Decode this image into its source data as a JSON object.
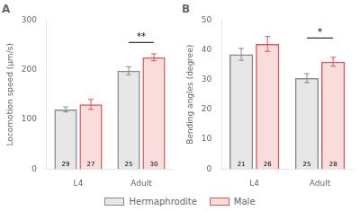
{
  "chart_data": [
    {
      "type": "bar",
      "title": "A",
      "ylabel": "Locomotion speed (μm/s)",
      "categories": [
        "L4",
        "Adult"
      ],
      "series": [
        {
          "name": "Hermaphrodite",
          "color": "#888888",
          "values": [
            120,
            198
          ],
          "errors": [
            5,
            8
          ],
          "n_labels": [
            "29",
            "25"
          ]
        },
        {
          "name": "Male",
          "color": "#e05555",
          "values": [
            130,
            225
          ],
          "errors": [
            10,
            7
          ],
          "n_labels": [
            "27",
            "30"
          ]
        }
      ],
      "ylim": [
        0,
        300
      ],
      "yticks": [
        0,
        100,
        200,
        300
      ],
      "grid": false,
      "legend": "bottom",
      "annotations": [
        {
          "text": "**",
          "category": "Adult",
          "y": 255
        }
      ]
    },
    {
      "type": "bar",
      "title": "B",
      "ylabel": "Bending angles (degree)",
      "categories": [
        "L4",
        "Adult"
      ],
      "series": [
        {
          "name": "Hermaphrodite",
          "color": "#888888",
          "values": [
            38.5,
            30.5
          ],
          "errors": [
            2.0,
            1.5
          ],
          "n_labels": [
            "21",
            "25"
          ]
        },
        {
          "name": "Male",
          "color": "#e05555",
          "values": [
            42.0,
            36.0
          ],
          "errors": [
            2.5,
            1.5
          ],
          "n_labels": [
            "26",
            "28"
          ]
        }
      ],
      "ylim": [
        0,
        50
      ],
      "yticks": [
        0,
        10,
        20,
        30,
        40,
        50
      ],
      "grid": false,
      "legend": "bottom",
      "annotations": [
        {
          "text": "*",
          "category": "Adult",
          "y": 44
        }
      ]
    }
  ]
}
